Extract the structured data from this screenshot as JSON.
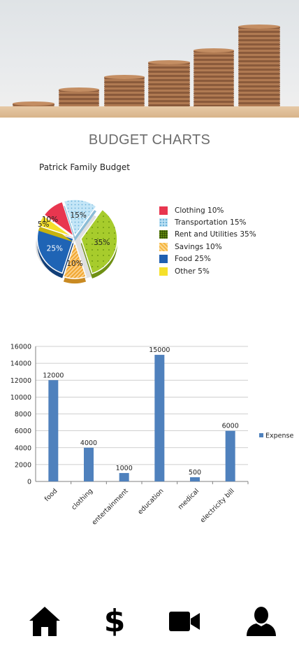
{
  "header": {
    "title": "BUDGET CHARTS"
  },
  "pie_chart": {
    "title": "Patrick Family Budget",
    "items": [
      {
        "label": "Clothing",
        "value": 10,
        "legend": "Clothing  10%",
        "slice_label": "10%",
        "color": "#e8364f"
      },
      {
        "label": "Transportation",
        "value": 15,
        "legend": "Transportation  15%",
        "slice_label": "15%",
        "color": "#bfe3f5"
      },
      {
        "label": "Rent and Utilities",
        "value": 35,
        "legend": "Rent and Utilities  35%",
        "slice_label": "35%",
        "color": "#a7cc2c"
      },
      {
        "label": "Savings",
        "value": 10,
        "legend": "Savings 10%",
        "slice_label": "10%",
        "color": "#f5b642"
      },
      {
        "label": "Food",
        "value": 25,
        "legend": "Food   25%",
        "slice_label": "25%",
        "color": "#1f6fbf"
      },
      {
        "label": "Other",
        "value": 5,
        "legend": "Other  5%",
        "slice_label": "5%",
        "color": "#f5e02a"
      }
    ]
  },
  "chart_data": [
    {
      "type": "pie",
      "title": "Patrick Family Budget",
      "categories": [
        "Clothing",
        "Transportation",
        "Rent and Utilities",
        "Savings",
        "Food",
        "Other"
      ],
      "values": [
        10,
        15,
        35,
        10,
        25,
        5
      ],
      "legend_position": "right"
    },
    {
      "type": "bar",
      "categories": [
        "food",
        "clothing",
        "entertainment",
        "education",
        "medical",
        "electricity bill"
      ],
      "series": [
        {
          "name": "Expense",
          "values": [
            12000,
            4000,
            1000,
            15000,
            500,
            6000
          ]
        }
      ],
      "ylim": [
        0,
        16000
      ],
      "yticks": [
        0,
        2000,
        4000,
        6000,
        8000,
        10000,
        12000,
        14000,
        16000
      ],
      "grid": true,
      "legend_position": "right",
      "bar_color": "#4f81bd"
    }
  ],
  "nav": [
    {
      "name": "home",
      "icon": "home-icon"
    },
    {
      "name": "budget",
      "icon": "dollar-icon",
      "glyph": "$"
    },
    {
      "name": "video",
      "icon": "video-camera-icon"
    },
    {
      "name": "profile",
      "icon": "user-icon"
    }
  ]
}
